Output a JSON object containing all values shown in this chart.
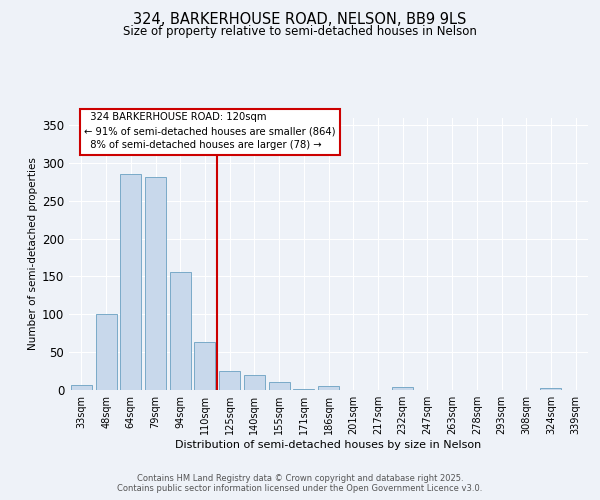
{
  "title1": "324, BARKERHOUSE ROAD, NELSON, BB9 9LS",
  "title2": "Size of property relative to semi-detached houses in Nelson",
  "xlabel": "Distribution of semi-detached houses by size in Nelson",
  "ylabel": "Number of semi-detached properties",
  "categories": [
    "33sqm",
    "48sqm",
    "64sqm",
    "79sqm",
    "94sqm",
    "110sqm",
    "125sqm",
    "140sqm",
    "155sqm",
    "171sqm",
    "186sqm",
    "201sqm",
    "217sqm",
    "232sqm",
    "247sqm",
    "263sqm",
    "278sqm",
    "293sqm",
    "308sqm",
    "324sqm",
    "339sqm"
  ],
  "values": [
    7,
    101,
    285,
    282,
    156,
    63,
    25,
    20,
    10,
    1,
    5,
    0,
    0,
    4,
    0,
    0,
    0,
    0,
    0,
    2,
    0
  ],
  "bar_color": "#c8d8eb",
  "bar_edge_color": "#7aaac8",
  "vline_x": 5.5,
  "vline_color": "#cc0000",
  "annotation_text": "  324 BARKERHOUSE ROAD: 120sqm\n← 91% of semi-detached houses are smaller (864)\n  8% of semi-detached houses are larger (78) →",
  "annotation_box_color": "#ffffff",
  "annotation_box_edge": "#cc0000",
  "ylim": [
    0,
    360
  ],
  "yticks": [
    0,
    50,
    100,
    150,
    200,
    250,
    300,
    350
  ],
  "footer1": "Contains HM Land Registry data © Crown copyright and database right 2025.",
  "footer2": "Contains public sector information licensed under the Open Government Licence v3.0.",
  "background_color": "#eef2f8",
  "plot_bg_color": "#eef2f8",
  "grid_color": "#ffffff"
}
